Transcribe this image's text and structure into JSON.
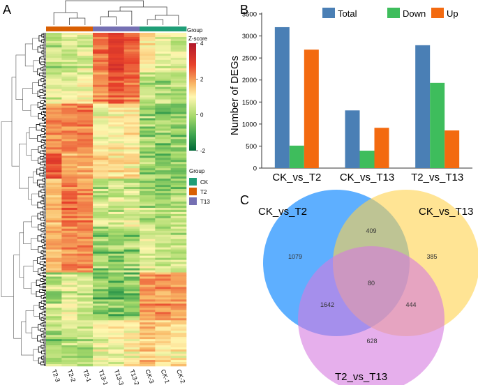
{
  "panels": {
    "a": "A",
    "b": "B",
    "c": "C"
  },
  "heatmap": {
    "samples": [
      "T2-3",
      "T2-2",
      "T2-1",
      "T13-1",
      "T13-3",
      "T13-2",
      "CK-3",
      "CK-1",
      "CK-2"
    ],
    "sample_groups": [
      "T2",
      "T2",
      "T2",
      "T13",
      "T13",
      "T13",
      "CK",
      "CK",
      "CK"
    ],
    "group_bar_title": "Group",
    "zscore_title": "Z-score",
    "zscore_ticks": [
      "4",
      "2",
      "0",
      "-2"
    ],
    "zscore_range": [
      -2,
      4
    ],
    "group_legend_title": "Group",
    "group_legend": [
      {
        "label": "CK",
        "color": "#1f9e77"
      },
      {
        "label": "T2",
        "color": "#d95f02"
      },
      {
        "label": "T13",
        "color": "#7570b3"
      }
    ]
  },
  "chart_data": [
    {
      "type": "heatmap",
      "columns": [
        "T2-3",
        "T2-2",
        "T2-1",
        "T13-1",
        "T13-3",
        "T13-2",
        "CK-3",
        "CK-1",
        "CK-2"
      ],
      "rows_description_value": "",
      "row_blocks": [
        {
          "name": "block1",
          "values": [
            -0.6,
            -0.4,
            -0.3,
            1.6,
            2.3,
            1.7,
            0.2,
            -0.3,
            -0.4
          ]
        },
        {
          "name": "block2",
          "values": [
            -0.3,
            -0.2,
            -0.1,
            1.2,
            1.8,
            1.4,
            -0.6,
            -0.7,
            -0.7
          ]
        },
        {
          "name": "block3",
          "values": [
            1.2,
            1.3,
            1.4,
            -0.1,
            0.1,
            0.2,
            -0.8,
            -0.9,
            -0.9
          ]
        },
        {
          "name": "block4",
          "values": [
            1.9,
            0.8,
            0.9,
            0.3,
            0.2,
            0.1,
            -0.9,
            -1.1,
            -1.0
          ]
        },
        {
          "name": "block5",
          "values": [
            0.6,
            1.5,
            1.3,
            -0.5,
            -0.4,
            -0.3,
            -0.7,
            -0.8,
            -0.7
          ]
        },
        {
          "name": "block6",
          "values": [
            0.9,
            1.3,
            1.2,
            -0.8,
            -0.9,
            -0.8,
            -0.3,
            -0.5,
            -0.4
          ]
        },
        {
          "name": "block7",
          "values": [
            -0.5,
            -0.3,
            -0.3,
            -1.0,
            -1.1,
            -0.9,
            1.0,
            1.2,
            1.1
          ]
        },
        {
          "name": "block8",
          "values": [
            -0.7,
            -0.6,
            -0.6,
            -0.2,
            0.0,
            0.1,
            0.6,
            0.3,
            0.2
          ]
        }
      ],
      "colorbar": {
        "min": -2,
        "max": 4,
        "title": "Z-score"
      }
    },
    {
      "type": "bar",
      "title": "",
      "categories": [
        "CK_vs_T2",
        "CK_vs_T13",
        "T2_vs_T13"
      ],
      "series": [
        {
          "name": "Total",
          "color": "#4a7fb5",
          "values": [
            3200,
            1310,
            2790
          ]
        },
        {
          "name": "Down",
          "color": "#3ebd5c",
          "values": [
            510,
            395,
            1935
          ]
        },
        {
          "name": "Up",
          "color": "#f36a10",
          "values": [
            2690,
            915,
            855
          ]
        }
      ],
      "xlabel": "",
      "ylabel": "Number of DEGs",
      "ylim": [
        0,
        3500
      ],
      "yticks": [
        0,
        500,
        1000,
        1500,
        2000,
        2500,
        3000,
        3500
      ],
      "legend_position": "top"
    },
    {
      "type": "venn",
      "sets": [
        {
          "name": "CK_vs_T2",
          "color": "#4da6ff"
        },
        {
          "name": "CK_vs_T13",
          "color": "#ffd24d"
        },
        {
          "name": "T2_vs_T13",
          "color": "#d67ae0"
        }
      ],
      "regions": [
        {
          "sets": [
            "CK_vs_T2"
          ],
          "value": 1079
        },
        {
          "sets": [
            "CK_vs_T13"
          ],
          "value": 385
        },
        {
          "sets": [
            "T2_vs_T13"
          ],
          "value": 628
        },
        {
          "sets": [
            "CK_vs_T2",
            "CK_vs_T13"
          ],
          "value": 409
        },
        {
          "sets": [
            "CK_vs_T2",
            "T2_vs_T13"
          ],
          "value": 1642
        },
        {
          "sets": [
            "CK_vs_T13",
            "T2_vs_T13"
          ],
          "value": 444
        },
        {
          "sets": [
            "CK_vs_T2",
            "CK_vs_T13",
            "T2_vs_T13"
          ],
          "value": 80
        }
      ]
    }
  ]
}
